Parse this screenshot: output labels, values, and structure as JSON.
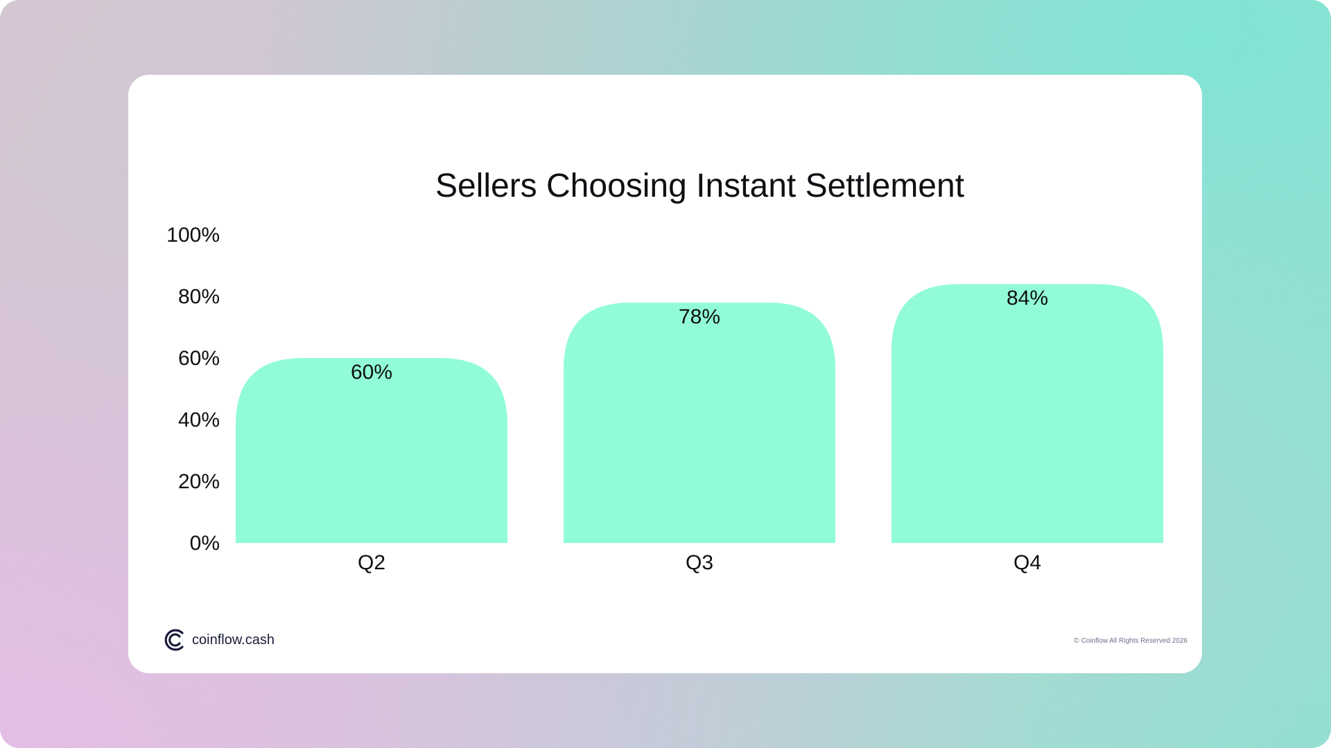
{
  "brand": {
    "name": "coinflow.cash",
    "copyright_symbol": "©",
    "copyright_text": "Coinflow All Rights Reserved 2026"
  },
  "colors": {
    "bar": "#91fcd6",
    "text": "#0f0f14",
    "card": "#ffffff",
    "logo": "#1a1d3a"
  },
  "chart_data": {
    "type": "bar",
    "title": "Sellers Choosing Instant Settlement",
    "categories": [
      "Q2",
      "Q3",
      "Q4"
    ],
    "values": [
      60,
      78,
      84
    ],
    "value_labels": [
      "60%",
      "78%",
      "84%"
    ],
    "y_ticks": [
      "0%",
      "20%",
      "40%",
      "60%",
      "80%",
      "100%"
    ],
    "ylim": [
      0,
      100
    ],
    "grid": false,
    "legend": "none",
    "xlabel": "",
    "ylabel": ""
  }
}
